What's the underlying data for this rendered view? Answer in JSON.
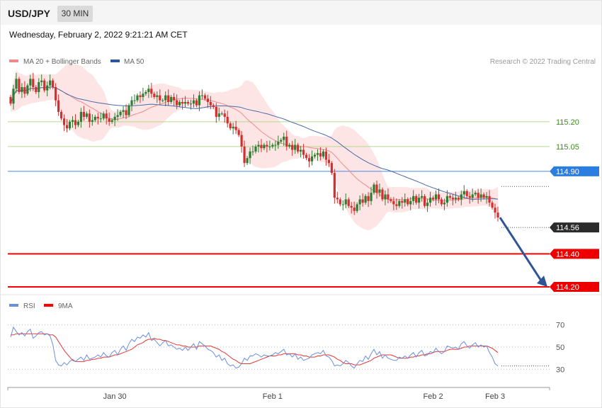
{
  "header": {
    "symbol": "USD/JPY",
    "timeframe": "30 MIN",
    "datetime": "Wednesday, February 2, 2022 9:21:21 AM CET"
  },
  "colors": {
    "up": "#2e7d32",
    "down": "#d32f2f",
    "band": "#fde2e2",
    "ma20": "#f08a8a",
    "ma50": "#4a6aa8",
    "support": "#ff0000",
    "resistance": "#b6d98a",
    "pivot": "#4a86e8",
    "arrow": "#2f5597",
    "rsi": "#6a8fe0",
    "rsi_ma": "#e53935"
  },
  "legend": [
    {
      "label": "MA 20 + Bollinger Bands",
      "color": "#f08a8a"
    },
    {
      "label": "MA 50",
      "color": "#2f5597"
    }
  ],
  "copyright": "Research © 2022 Trading Central",
  "rsi_legend": [
    {
      "label": "RSI",
      "color": "#6a8fe0"
    },
    {
      "label": "9MA",
      "color": "#ff0000"
    }
  ],
  "chart_data": [
    {
      "type": "candlestick",
      "ylim": [
        114.17,
        115.53
      ],
      "x_ticks": [
        {
          "label": "Jan 30",
          "bar": 37
        },
        {
          "label": "Feb 1",
          "bar": 93
        },
        {
          "label": "Feb 2",
          "bar": 150
        },
        {
          "label": "Feb 3",
          "bar": 172
        }
      ],
      "close": [
        115.31,
        115.4,
        115.46,
        115.38,
        115.41,
        115.37,
        115.42,
        115.46,
        115.41,
        115.38,
        115.44,
        115.45,
        115.39,
        115.42,
        115.45,
        115.41,
        115.33,
        115.26,
        115.22,
        115.18,
        115.16,
        115.2,
        115.21,
        115.18,
        115.2,
        115.26,
        115.23,
        115.25,
        115.2,
        115.21,
        115.23,
        115.22,
        115.22,
        115.25,
        115.22,
        115.2,
        115.21,
        115.23,
        115.24,
        115.26,
        115.27,
        115.24,
        115.3,
        115.33,
        115.33,
        115.36,
        115.35,
        115.37,
        115.38,
        115.4,
        115.37,
        115.35,
        115.36,
        115.33,
        115.33,
        115.36,
        115.32,
        115.35,
        115.33,
        115.3,
        115.32,
        115.31,
        115.32,
        115.31,
        115.31,
        115.33,
        115.3,
        115.36,
        115.36,
        115.34,
        115.32,
        115.3,
        115.29,
        115.23,
        115.25,
        115.25,
        115.23,
        115.19,
        115.16,
        115.17,
        115.15,
        115.12,
        115.05,
        114.95,
        114.98,
        115.02,
        115.02,
        115.05,
        115.06,
        115.04,
        115.06,
        115.05,
        115.05,
        115.06,
        115.06,
        115.08,
        115.09,
        115.11,
        115.05,
        115.06,
        115.03,
        115.06,
        115.02,
        115.03,
        115.0,
        114.98,
        114.96,
        114.99,
        115.0,
        115.01,
        114.99,
        115.02,
        114.97,
        114.95,
        114.89,
        114.74,
        114.73,
        114.7,
        114.7,
        114.73,
        114.69,
        114.68,
        114.66,
        114.7,
        114.73,
        114.71,
        114.75,
        114.72,
        114.77,
        114.82,
        114.77,
        114.79,
        114.73,
        114.76,
        114.73,
        114.72,
        114.7,
        114.69,
        114.72,
        114.71,
        114.73,
        114.7,
        114.72,
        114.75,
        114.71,
        114.74,
        114.75,
        114.69,
        114.71,
        114.74,
        114.73,
        114.76,
        114.73,
        114.7,
        114.71,
        114.75,
        114.74,
        114.73,
        114.74,
        114.73,
        114.76,
        114.78,
        114.75,
        114.74,
        114.76,
        114.77,
        114.74,
        114.76,
        114.74,
        114.75,
        114.71,
        114.68,
        114.65,
        114.62
      ]
    },
    {
      "type": "line",
      "title": "RSI",
      "ylim": [
        20,
        80
      ],
      "yticks": [
        30,
        50,
        70
      ],
      "series": [
        {
          "name": "RSI",
          "values": [
            59,
            68,
            64,
            61,
            63,
            60,
            64,
            66,
            58,
            60,
            63,
            64,
            61,
            62,
            60,
            52,
            38,
            34,
            33,
            36,
            34,
            37,
            39,
            37,
            39,
            41,
            38,
            43,
            39,
            40,
            41,
            43,
            41,
            45,
            42,
            41,
            45,
            47,
            43,
            48,
            51,
            47,
            53,
            57,
            55,
            59,
            58,
            61,
            59,
            63,
            56,
            57,
            54,
            51,
            54,
            56,
            51,
            52,
            50,
            48,
            49,
            47,
            50,
            47,
            50,
            53,
            48,
            55,
            53,
            51,
            48,
            47,
            45,
            41,
            43,
            38,
            40,
            35,
            33,
            34,
            31,
            32,
            35,
            40,
            38,
            42,
            42,
            44,
            43,
            41,
            43,
            42,
            42,
            43,
            45,
            44,
            46,
            48,
            43,
            44,
            41,
            44,
            39,
            41,
            38,
            39,
            40,
            43,
            44,
            45,
            44,
            47,
            42,
            41,
            38,
            33,
            34,
            33,
            35,
            38,
            36,
            33,
            31,
            35,
            38,
            37,
            42,
            39,
            44,
            48,
            43,
            46,
            40,
            43,
            40,
            39,
            38,
            38,
            41,
            40,
            42,
            40,
            43,
            45,
            41,
            45,
            47,
            42,
            43,
            46,
            45,
            49,
            46,
            44,
            46,
            51,
            50,
            49,
            50,
            48,
            53,
            55,
            51,
            49,
            52,
            54,
            50,
            52,
            50,
            51,
            45,
            41,
            35,
            33
          ]
        },
        {
          "name": "9MA",
          "values": [
            61,
            61,
            62,
            62,
            62,
            62,
            62,
            62,
            62,
            62,
            62,
            62,
            62,
            62,
            61,
            61,
            59,
            55,
            51,
            47,
            44,
            41,
            38,
            37,
            37,
            37,
            37,
            38,
            38,
            39,
            39,
            40,
            40,
            41,
            41,
            41,
            42,
            43,
            43,
            44,
            45,
            46,
            47,
            48,
            50,
            52,
            53,
            54,
            56,
            57,
            57,
            58,
            57,
            57,
            56,
            56,
            55,
            54,
            53,
            52,
            52,
            51,
            51,
            50,
            50,
            50,
            50,
            51,
            51,
            51,
            51,
            51,
            50,
            49,
            48,
            46,
            45,
            43,
            41,
            39,
            38,
            36,
            35,
            35,
            35,
            35,
            36,
            37,
            38,
            39,
            40,
            41,
            42,
            42,
            42,
            43,
            43,
            44,
            44,
            44,
            44,
            44,
            43,
            43,
            42,
            42,
            41,
            41,
            41,
            42,
            42,
            43,
            43,
            43,
            42,
            41,
            39,
            38,
            36,
            35,
            35,
            35,
            34,
            34,
            34,
            35,
            36,
            37,
            38,
            40,
            41,
            42,
            43,
            43,
            43,
            43,
            42,
            41,
            40,
            40,
            40,
            40,
            41,
            41,
            42,
            42,
            43,
            43,
            44,
            44,
            45,
            46,
            46,
            46,
            46,
            47,
            48,
            48,
            48,
            48,
            49,
            50,
            50,
            51,
            51,
            51,
            51,
            51,
            51,
            51,
            50,
            49,
            47,
            45
          ]
        }
      ]
    }
  ],
  "levels": [
    {
      "value": 115.2,
      "label": "115.20",
      "kind": "resistance"
    },
    {
      "value": 115.05,
      "label": "115.05",
      "kind": "resistance"
    },
    {
      "value": 114.9,
      "label": "114.90",
      "kind": "pivot"
    },
    {
      "value": 114.56,
      "label": "114.56",
      "kind": "price"
    },
    {
      "value": 114.4,
      "label": "114.40",
      "kind": "support"
    },
    {
      "value": 114.2,
      "label": "114.20",
      "kind": "support"
    }
  ]
}
